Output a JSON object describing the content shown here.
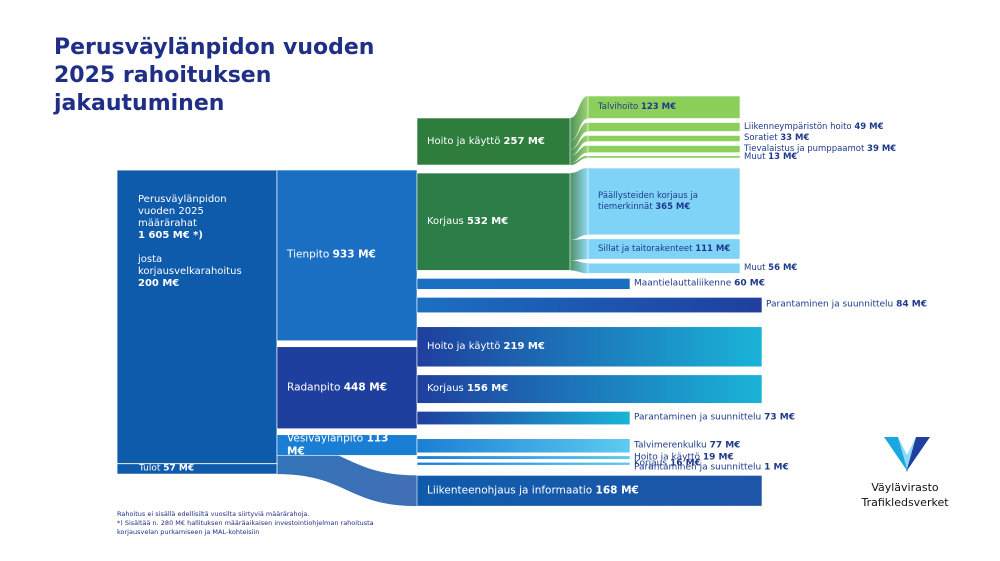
{
  "chart_data": {
    "type": "sankey",
    "title": "Perusväylänpidon vuoden 2025 rahoituksen jakautuminen",
    "sources": [
      {
        "name": "Perusväylänpidon vuoden 2025 määrärahat",
        "value": 1605,
        "value_label": "1 605 M€ *)",
        "color": "#0f5bab"
      },
      {
        "name": "Tulot",
        "value": 57,
        "value_label": "57 M€",
        "color": "#0f5bab"
      }
    ],
    "sub_note": {
      "name": "josta korjausvelkarahoitus",
      "value": 200,
      "value_label": "200 M€"
    },
    "flows": [
      {
        "name": "Tienpito",
        "value": 933,
        "value_label": "933 M€",
        "color": "#1b6fc2",
        "children": [
          {
            "name": "Hoito ja käyttö",
            "value": 257,
            "value_label": "257 M€",
            "color": "#2e7d3c",
            "children": [
              {
                "name": "Talvihoito",
                "value": 123,
                "value_label": "123 M€",
                "color": "#8ccf5a"
              },
              {
                "name": "Liikenneympäristön hoito",
                "value": 49,
                "value_label": "49 M€",
                "color": "#8ccf5a"
              },
              {
                "name": "Soratiet",
                "value": 33,
                "value_label": "33 M€",
                "color": "#8ccf5a"
              },
              {
                "name": "Tievalaistus ja pumppaamot",
                "value": 39,
                "value_label": "39 M€",
                "color": "#8ccf5a"
              },
              {
                "name": "Muut",
                "value": 13,
                "value_label": "13 M€",
                "color": "#8ccf5a"
              }
            ]
          },
          {
            "name": "Korjaus",
            "value": 532,
            "value_label": "532 M€",
            "color": "#2d7d48",
            "children": [
              {
                "name": "Päällysteiden korjaus ja tiemerkinnät",
                "value": 365,
                "value_label": "365 M€",
                "color": "#7fd3f7"
              },
              {
                "name": "Sillat ja taitorakenteet",
                "value": 111,
                "value_label": "111 M€",
                "color": "#7fd3f7"
              },
              {
                "name": "Muut",
                "value": 56,
                "value_label": "56 M€",
                "color": "#7fd3f7"
              }
            ]
          },
          {
            "name": "Maantielauttaliikenne",
            "value": 60,
            "value_label": "60 M€",
            "color": "#1a6ec0"
          },
          {
            "name": "Parantaminen ja suunnittelu",
            "value": 84,
            "value_label": "84 M€",
            "color": "#1f3f9e"
          }
        ]
      },
      {
        "name": "Radanpito",
        "value": 448,
        "value_label": "448 M€",
        "color": "#1f3f9e",
        "children": [
          {
            "name": "Hoito ja käyttö",
            "value": 219,
            "value_label": "219 M€",
            "color": "#1ab4d8"
          },
          {
            "name": "Korjaus",
            "value": 156,
            "value_label": "156 M€",
            "color": "#1ab4d8"
          },
          {
            "name": "Parantaminen ja suunnittelu",
            "value": 73,
            "value_label": "73 M€",
            "color": "#1ab4d8"
          }
        ]
      },
      {
        "name": "Vesiväylänpito",
        "value": 113,
        "value_label": "113 M€",
        "color": "#1a7fd4",
        "children": [
          {
            "name": "Talvimerenkulku",
            "value": 77,
            "value_label": "77 M€",
            "color": "#5ecbf0"
          },
          {
            "name": "Hoito ja käyttö",
            "value": 19,
            "value_label": "19 M€",
            "color": "#5ecbf0"
          },
          {
            "name": "Korjaus",
            "value": 16,
            "value_label": "16 M€",
            "color": "#5ecbf0"
          },
          {
            "name": "Parantaminen ja suunnittelu",
            "value": 1,
            "value_label": "1 M€",
            "color": "#5ecbf0"
          }
        ]
      },
      {
        "name": "Liikenteenohjaus ja informaatio",
        "value": 168,
        "value_label": "168 M€",
        "color": "#1f55a8"
      }
    ],
    "notes": [
      "Rahoitus ei sisällä edellisiltä vuosilta siirtyviä määrärahoja.",
      "*) Sisältää n. 280 M€ hallituksen määräaikaisen investointiohjelman rahoitusta",
      "korjausvelan purkamiseen ja MAL-kohteisiin"
    ]
  },
  "logo": {
    "name_fi": "Väylävirasto",
    "name_sv": "Trafikledsverket"
  }
}
